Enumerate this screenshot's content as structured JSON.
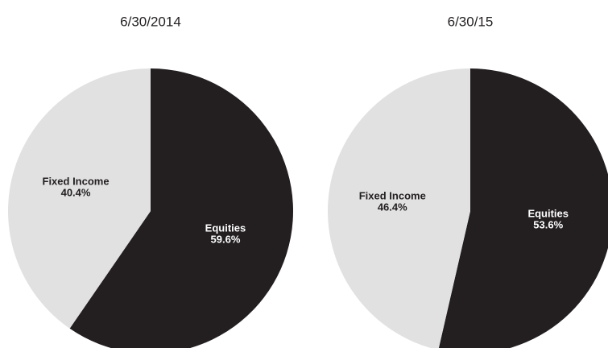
{
  "chart_data": [
    {
      "type": "pie",
      "title": "6/30/2014",
      "categories": [
        "Equities",
        "Fixed Income"
      ],
      "values": [
        59.6,
        40.4
      ],
      "value_labels": [
        "59.6%",
        "40.4%"
      ],
      "colors": [
        "#231f20",
        "#e1e1e2"
      ]
    },
    {
      "type": "pie",
      "title": "6/30/15",
      "categories": [
        "Equities",
        "Fixed Income"
      ],
      "values": [
        53.6,
        46.4
      ],
      "value_labels": [
        "53.6%",
        "46.4%"
      ],
      "colors": [
        "#231f20",
        "#e1e1e2"
      ]
    }
  ]
}
